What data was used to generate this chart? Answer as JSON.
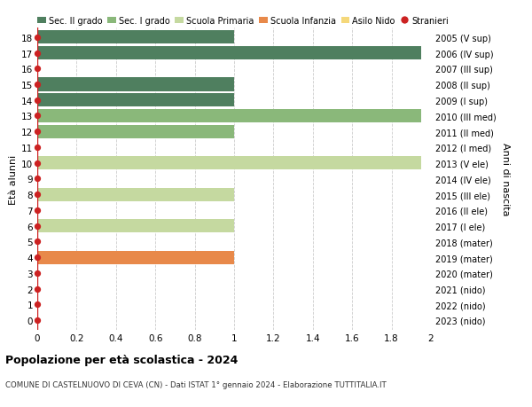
{
  "ages": [
    18,
    17,
    16,
    15,
    14,
    13,
    12,
    11,
    10,
    9,
    8,
    7,
    6,
    5,
    4,
    3,
    2,
    1,
    0
  ],
  "right_labels": [
    "2005 (V sup)",
    "2006 (IV sup)",
    "2007 (III sup)",
    "2008 (II sup)",
    "2009 (I sup)",
    "2010 (III med)",
    "2011 (II med)",
    "2012 (I med)",
    "2013 (V ele)",
    "2014 (IV ele)",
    "2015 (III ele)",
    "2016 (II ele)",
    "2017 (I ele)",
    "2018 (mater)",
    "2019 (mater)",
    "2020 (mater)",
    "2021 (nido)",
    "2022 (nido)",
    "2023 (nido)"
  ],
  "bars": [
    {
      "age": 18,
      "value": 1.0,
      "color": "#4f7f5f"
    },
    {
      "age": 17,
      "value": 1.95,
      "color": "#4f7f5f"
    },
    {
      "age": 16,
      "value": 0.0,
      "color": "#4f7f5f"
    },
    {
      "age": 15,
      "value": 1.0,
      "color": "#4f7f5f"
    },
    {
      "age": 14,
      "value": 1.0,
      "color": "#4f7f5f"
    },
    {
      "age": 13,
      "value": 1.95,
      "color": "#8ab87a"
    },
    {
      "age": 12,
      "value": 1.0,
      "color": "#8ab87a"
    },
    {
      "age": 11,
      "value": 0.0,
      "color": "#8ab87a"
    },
    {
      "age": 10,
      "value": 1.95,
      "color": "#c5d9a0"
    },
    {
      "age": 9,
      "value": 0.0,
      "color": "#c5d9a0"
    },
    {
      "age": 8,
      "value": 1.0,
      "color": "#c5d9a0"
    },
    {
      "age": 7,
      "value": 0.0,
      "color": "#c5d9a0"
    },
    {
      "age": 6,
      "value": 1.0,
      "color": "#c5d9a0"
    },
    {
      "age": 5,
      "value": 0.0,
      "color": "#e8894a"
    },
    {
      "age": 4,
      "value": 1.0,
      "color": "#e8894a"
    },
    {
      "age": 3,
      "value": 0.0,
      "color": "#e8894a"
    },
    {
      "age": 2,
      "value": 0.0,
      "color": "#f5d87a"
    },
    {
      "age": 1,
      "value": 0.0,
      "color": "#f5d87a"
    },
    {
      "age": 0,
      "value": 0.0,
      "color": "#f5d87a"
    }
  ],
  "stranieri_all": [
    18,
    17,
    16,
    15,
    14,
    13,
    12,
    11,
    10,
    9,
    8,
    7,
    6,
    5,
    4,
    3,
    2,
    1,
    0
  ],
  "xlim": [
    0,
    2.0
  ],
  "xticks": [
    0,
    0.2,
    0.4,
    0.6,
    0.8,
    1.0,
    1.2,
    1.4,
    1.6,
    1.8,
    2.0
  ],
  "ylabel": "Età alunni",
  "right_ylabel": "Anni di nascita",
  "title": "Popolazione per età scolastica - 2024",
  "subtitle": "COMUNE DI CASTELNUOVO DI CEVA (CN) - Dati ISTAT 1° gennaio 2024 - Elaborazione TUTTITALIA.IT",
  "legend_items": [
    {
      "label": "Sec. II grado",
      "color": "#4f7f5f",
      "type": "patch"
    },
    {
      "label": "Sec. I grado",
      "color": "#8ab87a",
      "type": "patch"
    },
    {
      "label": "Scuola Primaria",
      "color": "#c5d9a0",
      "type": "patch"
    },
    {
      "label": "Scuola Infanzia",
      "color": "#e8894a",
      "type": "patch"
    },
    {
      "label": "Asilo Nido",
      "color": "#f5d87a",
      "type": "patch"
    },
    {
      "label": "Stranieri",
      "color": "#cc2222",
      "type": "dot"
    }
  ],
  "bg_color": "#ffffff",
  "grid_color": "#cccccc",
  "bar_height": 0.85,
  "dot_color": "#cc2222",
  "dot_size": 18,
  "line_color": "#cc2222"
}
